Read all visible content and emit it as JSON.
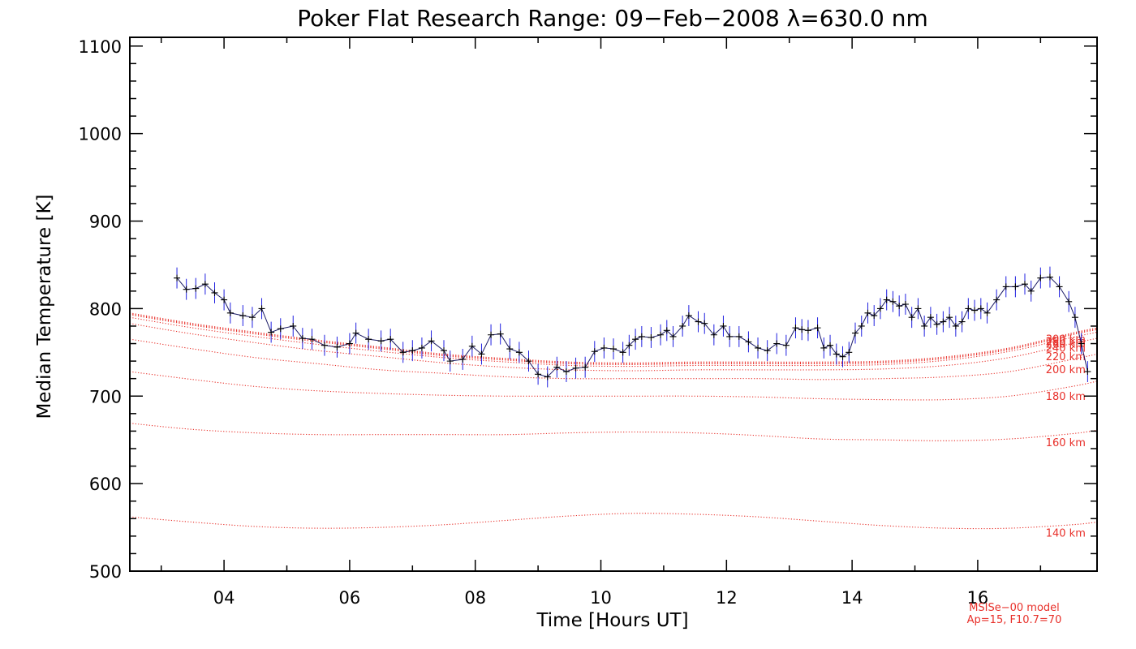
{
  "chart_data": {
    "type": "line",
    "title": "Poker Flat Research Range: 09−Feb−2008 λ=630.0 nm",
    "xlabel": "Time [Hours UT]",
    "ylabel": "Median Temperature [K]",
    "xlim": [
      2.5,
      17.9
    ],
    "ylim": [
      500,
      1110
    ],
    "x_ticks": [
      4,
      6,
      8,
      10,
      12,
      14,
      16
    ],
    "x_tick_labels": [
      "04",
      "06",
      "08",
      "10",
      "12",
      "14",
      "16"
    ],
    "y_ticks": [
      500,
      600,
      700,
      800,
      900,
      1000,
      1100
    ],
    "y_tick_labels": [
      "500",
      "600",
      "700",
      "800",
      "900",
      "1000",
      "1100"
    ],
    "grid": false,
    "measurement": {
      "color": "#000000",
      "error_color": "#1f1fe0",
      "error_bar": 12,
      "points": [
        [
          3.25,
          835
        ],
        [
          3.4,
          822
        ],
        [
          3.55,
          823
        ],
        [
          3.7,
          828
        ],
        [
          3.85,
          818
        ],
        [
          4.0,
          810
        ],
        [
          4.1,
          795
        ],
        [
          4.3,
          792
        ],
        [
          4.45,
          790
        ],
        [
          4.6,
          800
        ],
        [
          4.75,
          773
        ],
        [
          4.9,
          777
        ],
        [
          5.1,
          780
        ],
        [
          5.25,
          766
        ],
        [
          5.4,
          765
        ],
        [
          5.6,
          758
        ],
        [
          5.8,
          756
        ],
        [
          6.0,
          760
        ],
        [
          6.1,
          772
        ],
        [
          6.3,
          765
        ],
        [
          6.5,
          763
        ],
        [
          6.65,
          765
        ],
        [
          6.85,
          750
        ],
        [
          7.0,
          752
        ],
        [
          7.15,
          755
        ],
        [
          7.3,
          763
        ],
        [
          7.5,
          752
        ],
        [
          7.6,
          740
        ],
        [
          7.8,
          742
        ],
        [
          7.95,
          757
        ],
        [
          8.1,
          748
        ],
        [
          8.25,
          770
        ],
        [
          8.4,
          771
        ],
        [
          8.55,
          754
        ],
        [
          8.7,
          750
        ],
        [
          8.85,
          740
        ],
        [
          9.0,
          725
        ],
        [
          9.15,
          722
        ],
        [
          9.3,
          733
        ],
        [
          9.45,
          728
        ],
        [
          9.6,
          732
        ],
        [
          9.75,
          733
        ],
        [
          9.9,
          751
        ],
        [
          10.05,
          755
        ],
        [
          10.2,
          754
        ],
        [
          10.35,
          750
        ],
        [
          10.45,
          758
        ],
        [
          10.55,
          765
        ],
        [
          10.65,
          768
        ],
        [
          10.8,
          767
        ],
        [
          10.95,
          770
        ],
        [
          11.05,
          775
        ],
        [
          11.15,
          768
        ],
        [
          11.3,
          780
        ],
        [
          11.4,
          792
        ],
        [
          11.55,
          785
        ],
        [
          11.65,
          783
        ],
        [
          11.8,
          770
        ],
        [
          11.95,
          780
        ],
        [
          12.05,
          768
        ],
        [
          12.2,
          768
        ],
        [
          12.35,
          762
        ],
        [
          12.5,
          755
        ],
        [
          12.65,
          752
        ],
        [
          12.8,
          760
        ],
        [
          12.95,
          758
        ],
        [
          13.1,
          778
        ],
        [
          13.2,
          776
        ],
        [
          13.3,
          775
        ],
        [
          13.45,
          778
        ],
        [
          13.55,
          755
        ],
        [
          13.65,
          758
        ],
        [
          13.75,
          748
        ],
        [
          13.85,
          745
        ],
        [
          13.95,
          750
        ],
        [
          14.05,
          772
        ],
        [
          14.15,
          780
        ],
        [
          14.25,
          795
        ],
        [
          14.35,
          792
        ],
        [
          14.45,
          800
        ],
        [
          14.55,
          810
        ],
        [
          14.65,
          808
        ],
        [
          14.75,
          803
        ],
        [
          14.85,
          805
        ],
        [
          14.95,
          790
        ],
        [
          15.05,
          800
        ],
        [
          15.15,
          780
        ],
        [
          15.25,
          790
        ],
        [
          15.35,
          782
        ],
        [
          15.45,
          785
        ],
        [
          15.55,
          790
        ],
        [
          15.65,
          780
        ],
        [
          15.75,
          785
        ],
        [
          15.85,
          800
        ],
        [
          15.95,
          798
        ],
        [
          16.05,
          800
        ],
        [
          16.15,
          795
        ],
        [
          16.3,
          810
        ],
        [
          16.45,
          825
        ],
        [
          16.6,
          825
        ],
        [
          16.75,
          828
        ],
        [
          16.85,
          820
        ],
        [
          17.0,
          835
        ],
        [
          17.15,
          836
        ],
        [
          17.3,
          825
        ],
        [
          17.45,
          808
        ],
        [
          17.55,
          790
        ],
        [
          17.65,
          760
        ],
        [
          17.75,
          728
        ]
      ]
    },
    "model": {
      "color": "#e8302a",
      "x": [
        2.5,
        3.5,
        4.5,
        5.5,
        6.5,
        7.5,
        8.5,
        9.5,
        10.5,
        11.5,
        12.5,
        13.5,
        14.5,
        15.5,
        16.5,
        17.5,
        17.9
      ],
      "note_line1": "MSISe−00 model",
      "note_line2": "Ap=15, F10.7=70",
      "series": [
        {
          "name": "140 km",
          "values": [
            562,
            556,
            551,
            549,
            550,
            553,
            558,
            563,
            566,
            565,
            562,
            557,
            552,
            549,
            549,
            553,
            556
          ]
        },
        {
          "name": "160 km",
          "values": [
            669,
            662,
            658,
            656,
            656,
            656,
            656,
            658,
            659,
            658,
            655,
            651,
            650,
            649,
            651,
            657,
            661
          ]
        },
        {
          "name": "180 km",
          "values": [
            728,
            719,
            711,
            706,
            703,
            701,
            700,
            700,
            700,
            700,
            699,
            697,
            696,
            696,
            700,
            711,
            717
          ]
        },
        {
          "name": "200 km",
          "values": [
            765,
            754,
            744,
            737,
            730,
            726,
            722,
            720,
            720,
            720,
            720,
            719,
            720,
            722,
            728,
            742,
            748
          ]
        },
        {
          "name": "220 km",
          "values": [
            783,
            771,
            761,
            752,
            745,
            738,
            733,
            730,
            729,
            730,
            730,
            730,
            731,
            735,
            744,
            760,
            766
          ]
        },
        {
          "name": "240 km",
          "values": [
            790,
            778,
            768,
            759,
            751,
            744,
            739,
            735,
            734,
            735,
            735,
            735,
            736,
            741,
            751,
            767,
            773
          ]
        },
        {
          "name": "260 km",
          "values": [
            793,
            781,
            771,
            762,
            754,
            746,
            741,
            737,
            736,
            737,
            737,
            737,
            738,
            743,
            753,
            770,
            776
          ]
        },
        {
          "name": "280 km",
          "values": [
            794,
            782,
            772,
            763,
            755,
            747,
            742,
            738,
            737,
            738,
            738,
            738,
            739,
            744,
            754,
            771,
            777
          ]
        },
        {
          "name": "300 km",
          "values": [
            795,
            783,
            773,
            764,
            756,
            748,
            743,
            739,
            738,
            739,
            739,
            739,
            740,
            745,
            755,
            772,
            778
          ]
        }
      ]
    }
  }
}
